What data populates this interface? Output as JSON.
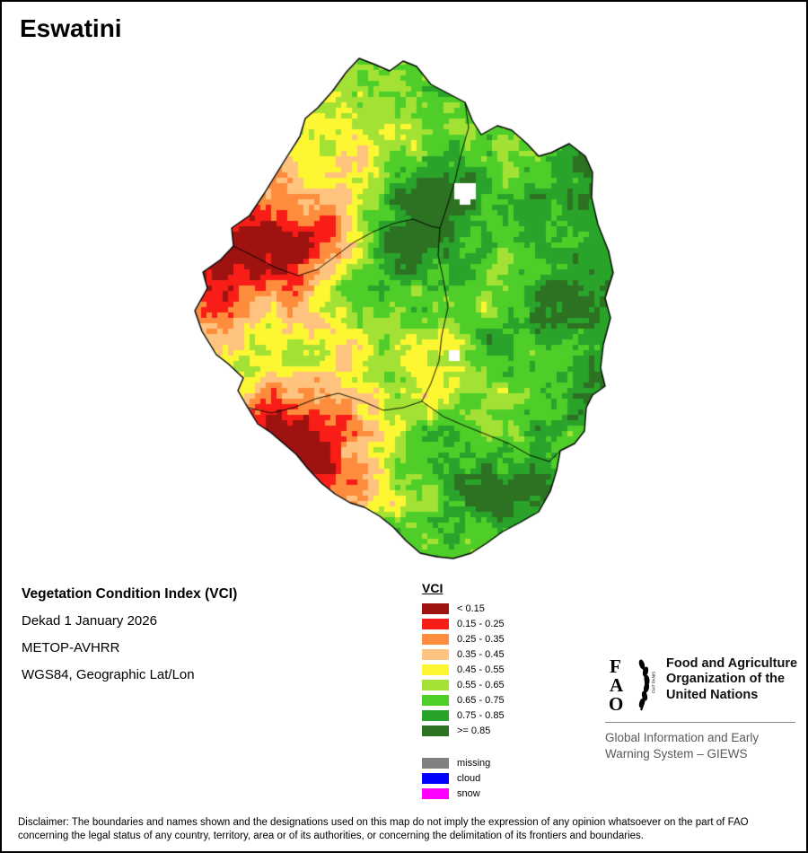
{
  "title": "Eswatini",
  "map": {
    "name": "Eswatini Vegetation Condition Index raster map",
    "white_color": "#ffffff",
    "boundary_color": "#000000"
  },
  "legend": {
    "title": "VCI",
    "classes": [
      {
        "label": "< 0.15",
        "color": "#9e1310"
      },
      {
        "label": "0.15 - 0.25",
        "color": "#f81e17"
      },
      {
        "label": "0.25 - 0.35",
        "color": "#fd8d3c"
      },
      {
        "label": "0.35 - 0.45",
        "color": "#fec37e"
      },
      {
        "label": "0.45 - 0.55",
        "color": "#fdf733"
      },
      {
        "label": "0.55 - 0.65",
        "color": "#a3e234"
      },
      {
        "label": "0.65 - 0.75",
        "color": "#4fce2a"
      },
      {
        "label": "0.75 - 0.85",
        "color": "#2aa32a"
      },
      {
        "label": ">= 0.85",
        "color": "#2d7222"
      }
    ],
    "extra_classes": [
      {
        "label": "missing",
        "color": "#808080"
      },
      {
        "label": "cloud",
        "color": "#0000ff"
      },
      {
        "label": "snow",
        "color": "#ff00ff"
      }
    ]
  },
  "info": {
    "product": "Vegetation Condition Index (VCI)",
    "dekad": "Dekad 1 January 2026",
    "sensor": "METOP-AVHRR",
    "projection": "WGS84, Geographic Lat/Lon"
  },
  "fao": {
    "letters": [
      "F",
      "A",
      "O"
    ],
    "motto": "FIAT PANIS",
    "org_name": "Food and Agriculture Organization of the United Nations",
    "giews": "Global Information and Early Warning System – GIEWS"
  },
  "disclaimer": "Disclaimer: The boundaries and names shown and the designations used on this map do not imply the expression of any opinion whatsoever on the part of FAO concerning the legal status of any country, territory, area or of its authorities, or concerning the delimitation of its frontiers and boundaries."
}
